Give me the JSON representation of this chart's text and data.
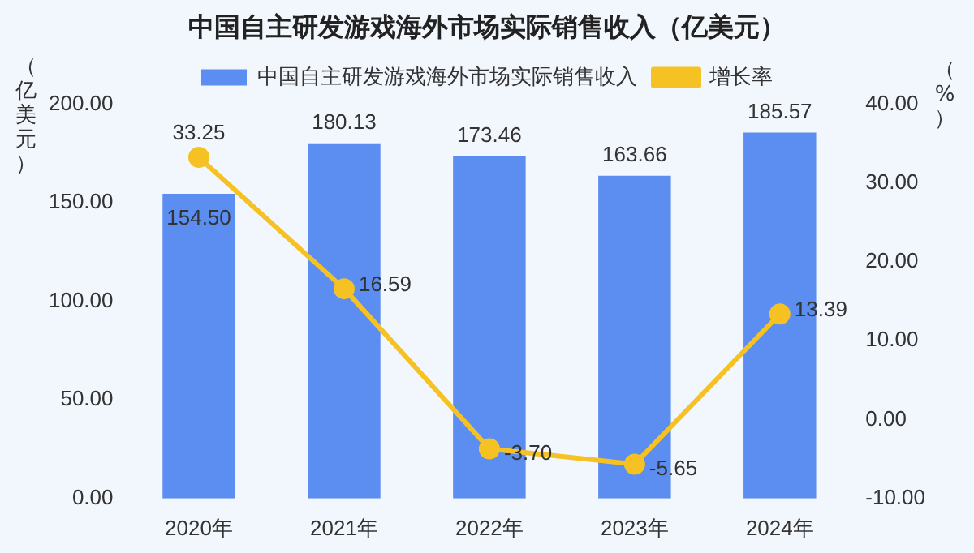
{
  "chart_data": {
    "type": "bar",
    "title": "中国自主研发游戏海外市场实际销售收入（亿美元）",
    "ylabel": "（亿美元）",
    "y2label": "（%）",
    "categories": [
      "2020年",
      "2021年",
      "2022年",
      "2023年",
      "2024年"
    ],
    "series": [
      {
        "name": "中国自主研发游戏海外市场实际销售收入",
        "color": "#5b8ef0",
        "values": [
          154.5,
          180.13,
          173.46,
          163.66,
          185.57
        ],
        "value_labels": [
          "154.50",
          "180.13",
          "173.46",
          "163.66",
          "185.57"
        ]
      },
      {
        "name": "增长率",
        "type": "line",
        "axis": "y2",
        "color": "#f6c223",
        "marker": "circle",
        "values": [
          33.25,
          16.59,
          -3.7,
          -5.65,
          13.39
        ],
        "value_labels": [
          "33.25",
          "16.59",
          "-3.70",
          "-5.65",
          "13.39"
        ]
      }
    ],
    "ylim": [
      0,
      200
    ],
    "yticks": [
      {
        "value": 0,
        "label": "0.00"
      },
      {
        "value": 50,
        "label": "50.00"
      },
      {
        "value": 100,
        "label": "100.00"
      },
      {
        "value": 150,
        "label": "150.00"
      },
      {
        "value": 200,
        "label": "200.00"
      }
    ],
    "y2lim": [
      -10,
      40
    ],
    "y2ticks": [
      {
        "value": -10,
        "label": "-10.00"
      },
      {
        "value": 0,
        "label": "0.00"
      },
      {
        "value": 10,
        "label": "10.00"
      },
      {
        "value": 20,
        "label": "20.00"
      },
      {
        "value": 30,
        "label": "30.00"
      },
      {
        "value": 40,
        "label": "40.00"
      }
    ],
    "data_labels": true,
    "legend": "top",
    "grid": false
  }
}
